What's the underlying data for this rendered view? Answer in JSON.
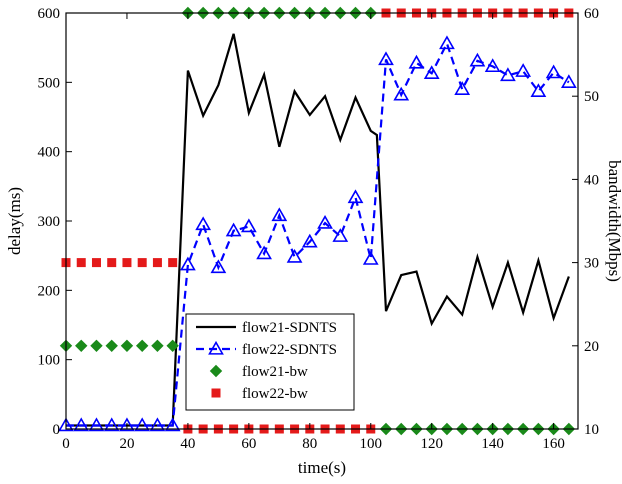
{
  "chart_data": {
    "type": "line",
    "xlabel": "time(s)",
    "ylabel_left": "delay(ms)",
    "ylabel_right": "bandwidth(Mbps)",
    "xlim": [
      0,
      168
    ],
    "ylim_left": [
      0,
      600
    ],
    "ylim_right": [
      10,
      60
    ],
    "x_ticks": [
      0,
      20,
      40,
      60,
      80,
      100,
      120,
      140,
      160
    ],
    "y_left_ticks": [
      0,
      100,
      200,
      300,
      400,
      500,
      600
    ],
    "y_right_ticks": [
      10,
      20,
      30,
      40,
      50,
      60
    ],
    "grid": false,
    "legend_position": "lower-center",
    "series": [
      {
        "name": "flow21-SDNTS",
        "axis": "left",
        "color": "#000000",
        "style": "solid",
        "marker": "none",
        "x": [
          0,
          5,
          10,
          15,
          20,
          25,
          30,
          35,
          40,
          45,
          50,
          55,
          60,
          65,
          70,
          75,
          80,
          85,
          90,
          95,
          100,
          102,
          105,
          110,
          115,
          120,
          125,
          130,
          135,
          140,
          145,
          150,
          155,
          160,
          165
        ],
        "y": [
          5,
          5,
          5,
          5,
          5,
          5,
          5,
          5,
          517,
          452,
          496,
          570,
          456,
          511,
          407,
          487,
          453,
          480,
          417,
          478,
          430,
          424,
          170,
          222,
          227,
          152,
          191,
          165,
          248,
          176,
          240,
          168,
          243,
          160,
          220
        ]
      },
      {
        "name": "flow22-SDNTS",
        "axis": "left",
        "color": "#0000ff",
        "style": "dashed",
        "marker": "triangle",
        "x": [
          0,
          5,
          10,
          15,
          20,
          25,
          30,
          35,
          40,
          45,
          50,
          55,
          60,
          65,
          70,
          75,
          80,
          85,
          90,
          95,
          100,
          105,
          110,
          115,
          120,
          125,
          130,
          135,
          140,
          145,
          150,
          155,
          160,
          165
        ],
        "y": [
          5,
          5,
          5,
          5,
          5,
          5,
          5,
          5,
          237,
          295,
          233,
          286,
          292,
          253,
          308,
          248,
          270,
          297,
          278,
          334,
          245,
          533,
          482,
          528,
          513,
          556,
          490,
          531,
          523,
          510,
          516,
          487,
          514,
          500
        ]
      },
      {
        "name": "flow21-bw",
        "axis": "right",
        "color": "#1a8a1a",
        "style": "markers",
        "marker": "diamond",
        "x": [
          0,
          5,
          10,
          15,
          20,
          25,
          30,
          35,
          40,
          45,
          50,
          55,
          60,
          65,
          70,
          75,
          80,
          85,
          90,
          95,
          100,
          105,
          110,
          115,
          120,
          125,
          130,
          135,
          140,
          145,
          150,
          155,
          160,
          165
        ],
        "y": [
          20,
          20,
          20,
          20,
          20,
          20,
          20,
          20,
          60,
          60,
          60,
          60,
          60,
          60,
          60,
          60,
          60,
          60,
          60,
          60,
          60,
          10,
          10,
          10,
          10,
          10,
          10,
          10,
          10,
          10,
          10,
          10,
          10,
          10
        ]
      },
      {
        "name": "flow22-bw",
        "axis": "right",
        "color": "#e41a1a",
        "style": "markers",
        "marker": "square",
        "x": [
          0,
          5,
          10,
          15,
          20,
          25,
          30,
          35,
          40,
          45,
          50,
          55,
          60,
          65,
          70,
          75,
          80,
          85,
          90,
          95,
          100,
          105,
          110,
          115,
          120,
          125,
          130,
          135,
          140,
          145,
          150,
          155,
          160,
          165
        ],
        "y": [
          30,
          30,
          30,
          30,
          30,
          30,
          30,
          30,
          10,
          10,
          10,
          10,
          10,
          10,
          10,
          10,
          10,
          10,
          10,
          10,
          10,
          60,
          60,
          60,
          60,
          60,
          60,
          60,
          60,
          60,
          60,
          60,
          60,
          60
        ]
      }
    ]
  }
}
